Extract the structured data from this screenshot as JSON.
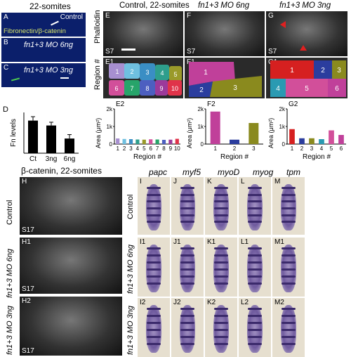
{
  "left_header": "22-somites",
  "panel_A": {
    "letter": "A",
    "condition": "Control",
    "legend": "Fibronectin/β-catenin"
  },
  "panel_B": {
    "letter": "B",
    "condition": "fn1+3 MO 6ng"
  },
  "panel_C": {
    "letter": "C",
    "condition": "fn1+3 MO 3ng"
  },
  "panel_D": {
    "letter": "D"
  },
  "headers": {
    "E": "Control, 22-somites",
    "F": "fn1+3 MO 6ng",
    "G": "fn1+3 MO 3ng"
  },
  "phalloidin_label": "Phalloidin",
  "region_label": "Region #",
  "letters": {
    "E": "E",
    "F": "F",
    "G": "G",
    "E1": "E1",
    "F1": "F1",
    "G1": "G1",
    "E2": "E2",
    "F2": "F2",
    "G2": "G2"
  },
  "s7": "S7",
  "e1_regions": [
    "1",
    "2",
    "3",
    "4",
    "5",
    "6",
    "7",
    "8",
    "9",
    "10"
  ],
  "f1_regions": [
    "1",
    "2",
    "3"
  ],
  "g1_regions": [
    "1",
    "2",
    "3",
    "4",
    "5",
    "6"
  ],
  "bottom_left_header": "β-catenin, 22-somites",
  "H_panels": [
    {
      "letter": "H",
      "side": "Control",
      "somite": "S17"
    },
    {
      "letter": "H1",
      "side": "fn1+3 MO 6ng",
      "somite": "S17"
    },
    {
      "letter": "H2",
      "side": "fn1+3 MO 3ng",
      "somite": "S17"
    }
  ],
  "ish_genes": [
    "papc",
    "myf5",
    "myoD",
    "myog",
    "tpm"
  ],
  "ish_rows": [
    {
      "side": "Control",
      "letters": [
        "I",
        "J",
        "K",
        "L",
        "M"
      ]
    },
    {
      "side": "fn1+3 MO 6ng",
      "letters": [
        "I1",
        "J1",
        "K1",
        "L1",
        "M1"
      ]
    },
    {
      "side": "fn1+3 MO 3ng",
      "letters": [
        "I2",
        "J2",
        "K2",
        "L2",
        "M2"
      ]
    }
  ],
  "chart_data": [
    {
      "id": "D",
      "type": "bar",
      "ylabel": "Fn levels",
      "categories": [
        "Ct",
        "3ng",
        "6ng"
      ],
      "values": [
        1.0,
        0.85,
        0.45
      ],
      "errors": [
        0.12,
        0.1,
        0.12
      ],
      "color": "#000000"
    },
    {
      "id": "E2",
      "type": "bar",
      "ylabel": "Area (μm²)",
      "xlabel": "Region #",
      "yticks": [
        "0",
        "1k",
        "2k"
      ],
      "ylim": [
        0,
        2000
      ],
      "categories": [
        "1",
        "2",
        "3",
        "4",
        "5",
        "6",
        "7",
        "8",
        "9",
        "10"
      ],
      "values": [
        320,
        290,
        280,
        260,
        250,
        270,
        260,
        240,
        250,
        300
      ],
      "colors": [
        "#a78fd0",
        "#6fc0e0",
        "#3a8ec4",
        "#2e9e8c",
        "#9a9a2a",
        "#d24f9a",
        "#27a46a",
        "#4d5fc0",
        "#9c3a9a",
        "#e0334a"
      ]
    },
    {
      "id": "F2",
      "type": "bar",
      "ylabel": "Area (μm²)",
      "xlabel": "Region #",
      "yticks": [
        "0",
        "1k",
        "2k"
      ],
      "ylim": [
        0,
        2000
      ],
      "categories": [
        "1",
        "2",
        "3"
      ],
      "values": [
        1850,
        250,
        1200
      ],
      "colors": [
        "#c0409a",
        "#2b3d9e",
        "#8a8a1e"
      ]
    },
    {
      "id": "G2",
      "type": "bar",
      "ylabel": "Area (μm²)",
      "xlabel": "Region #",
      "yticks": [
        "0",
        "1k",
        "2k"
      ],
      "ylim": [
        0,
        2000
      ],
      "categories": [
        "1",
        "2",
        "3",
        "4",
        "5",
        "6"
      ],
      "values": [
        850,
        330,
        330,
        280,
        780,
        520
      ],
      "colors": [
        "#d62020",
        "#2b3d9e",
        "#8a8a1e",
        "#2a9ab2",
        "#d24f9a",
        "#c0409a"
      ]
    }
  ]
}
